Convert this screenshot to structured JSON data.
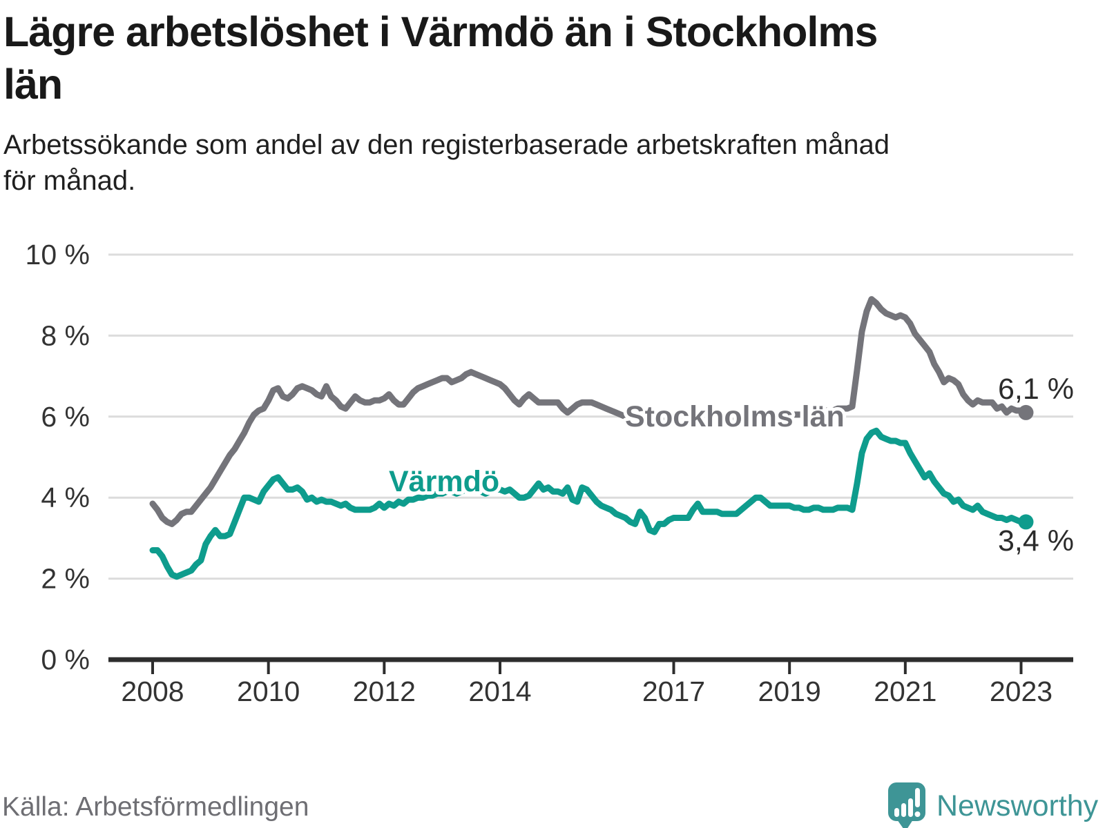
{
  "header": {
    "title_line1": "Lägre arbetslöshet i Värmdö än i Stockholms",
    "title_line2": "län",
    "subtitle_line1": "Arbetssökande som andel av den registerbaserade arbetskraften månad",
    "subtitle_line2": "för månad."
  },
  "footer": {
    "source": "Källa: Arbetsförmedlingen",
    "logo_text": "Newsworthy"
  },
  "chart_data": {
    "type": "line",
    "title": "Lägre arbetslöshet i Värmdö än i Stockholms län",
    "subtitle": "Arbetssökande som andel av den registerbaserade arbetskraften månad för månad.",
    "unit": "percent of registered labour force",
    "x_start": "2008-01",
    "x_end": "2023-02",
    "x_interval": "month",
    "ylim": [
      0,
      10
    ],
    "grid": true,
    "legend_position": "inline-labels",
    "y_axis": {
      "ticks": [
        {
          "label": "0 %",
          "value": 0
        },
        {
          "label": "2 %",
          "value": 2
        },
        {
          "label": "4 %",
          "value": 4
        },
        {
          "label": "6 %",
          "value": 6
        },
        {
          "label": "8 %",
          "value": 8
        },
        {
          "label": "10 %",
          "value": 10
        }
      ]
    },
    "x_axis": {
      "ticks": [
        {
          "label": "2008",
          "month": 0
        },
        {
          "label": "2010",
          "month": 24
        },
        {
          "label": "2012",
          "month": 48
        },
        {
          "label": "2014",
          "month": 72
        },
        {
          "label": "2017",
          "month": 108
        },
        {
          "label": "2019",
          "month": 132
        },
        {
          "label": "2021",
          "month": 156
        },
        {
          "label": "2023",
          "month": 180
        }
      ]
    },
    "style": {
      "grid_color": "#DCDCDC",
      "axis_color": "#2D2D2D",
      "tick_label_color": "#333333",
      "value_label_color": "#2B2B2B",
      "halo_color": "#FFFFFF"
    },
    "series": [
      {
        "id": "stockholm",
        "name": "Stockholms län",
        "color": "#74747A",
        "end_value": 6.1,
        "end_label": "6,1 %",
        "values": [
          3.85,
          3.7,
          3.5,
          3.4,
          3.35,
          3.45,
          3.6,
          3.65,
          3.65,
          3.8,
          3.95,
          4.1,
          4.25,
          4.45,
          4.65,
          4.85,
          5.05,
          5.2,
          5.4,
          5.6,
          5.85,
          6.05,
          6.15,
          6.2,
          6.4,
          6.65,
          6.7,
          6.5,
          6.45,
          6.55,
          6.7,
          6.75,
          6.7,
          6.65,
          6.55,
          6.5,
          6.75,
          6.5,
          6.4,
          6.25,
          6.2,
          6.35,
          6.5,
          6.4,
          6.35,
          6.35,
          6.4,
          6.4,
          6.45,
          6.55,
          6.4,
          6.3,
          6.3,
          6.45,
          6.6,
          6.7,
          6.75,
          6.8,
          6.85,
          6.9,
          6.95,
          6.95,
          6.85,
          6.9,
          6.95,
          7.05,
          7.1,
          7.05,
          7.0,
          6.95,
          6.9,
          6.85,
          6.8,
          6.7,
          6.55,
          6.4,
          6.3,
          6.45,
          6.55,
          6.45,
          6.35,
          6.35,
          6.35,
          6.35,
          6.35,
          6.2,
          6.1,
          6.2,
          6.3,
          6.35,
          6.35,
          6.35,
          6.3,
          6.25,
          6.2,
          6.15,
          6.1,
          6.05,
          6.0,
          5.95,
          5.95,
          5.95,
          6.0,
          6.0,
          5.95,
          5.9,
          5.9,
          5.9,
          5.9,
          5.9,
          5.85,
          5.85,
          5.85,
          5.9,
          5.95,
          5.95,
          5.9,
          5.85,
          5.85,
          5.9,
          5.9,
          5.9,
          5.85,
          5.85,
          5.85,
          5.9,
          5.95,
          5.95,
          5.95,
          5.95,
          6.0,
          6.05,
          6.05,
          6.05,
          6.05,
          6.05,
          6.1,
          6.1,
          6.15,
          6.15,
          6.15,
          6.15,
          6.2,
          6.2,
          6.2,
          6.25,
          7.15,
          8.1,
          8.6,
          8.9,
          8.8,
          8.65,
          8.55,
          8.5,
          8.45,
          8.5,
          8.45,
          8.3,
          8.05,
          7.9,
          7.75,
          7.6,
          7.3,
          7.1,
          6.85,
          6.95,
          6.9,
          6.8,
          6.55,
          6.4,
          6.3,
          6.4,
          6.35,
          6.35,
          6.35,
          6.2,
          6.25,
          6.1,
          6.2,
          6.15,
          6.15,
          6.1
        ]
      },
      {
        "id": "varmdo",
        "name": "Värmdö",
        "color": "#0E9C8D",
        "end_value": 3.4,
        "end_label": "3,4 %",
        "values": [
          2.7,
          2.7,
          2.55,
          2.3,
          2.1,
          2.05,
          2.1,
          2.15,
          2.2,
          2.35,
          2.45,
          2.85,
          3.05,
          3.2,
          3.05,
          3.05,
          3.1,
          3.4,
          3.7,
          4.0,
          4.0,
          3.95,
          3.9,
          4.15,
          4.3,
          4.45,
          4.5,
          4.35,
          4.2,
          4.2,
          4.25,
          4.15,
          3.95,
          4.0,
          3.9,
          3.95,
          3.9,
          3.9,
          3.85,
          3.8,
          3.85,
          3.75,
          3.7,
          3.7,
          3.7,
          3.7,
          3.75,
          3.85,
          3.75,
          3.85,
          3.8,
          3.9,
          3.85,
          3.95,
          3.95,
          4.0,
          4.0,
          4.05,
          4.05,
          4.1,
          4.1,
          4.15,
          4.15,
          4.1,
          4.15,
          4.2,
          4.2,
          4.15,
          4.15,
          4.1,
          4.15,
          4.2,
          4.2,
          4.15,
          4.2,
          4.1,
          4.0,
          4.0,
          4.05,
          4.2,
          4.35,
          4.2,
          4.25,
          4.15,
          4.15,
          4.1,
          4.25,
          3.95,
          3.9,
          4.25,
          4.2,
          4.05,
          3.9,
          3.8,
          3.75,
          3.7,
          3.6,
          3.55,
          3.5,
          3.4,
          3.35,
          3.65,
          3.5,
          3.2,
          3.15,
          3.35,
          3.35,
          3.45,
          3.5,
          3.5,
          3.5,
          3.5,
          3.7,
          3.85,
          3.65,
          3.65,
          3.65,
          3.65,
          3.6,
          3.6,
          3.6,
          3.6,
          3.7,
          3.8,
          3.9,
          4.0,
          4.0,
          3.9,
          3.8,
          3.8,
          3.8,
          3.8,
          3.8,
          3.75,
          3.75,
          3.7,
          3.7,
          3.75,
          3.75,
          3.7,
          3.7,
          3.7,
          3.75,
          3.75,
          3.75,
          3.7,
          4.35,
          5.1,
          5.45,
          5.6,
          5.65,
          5.5,
          5.45,
          5.4,
          5.4,
          5.35,
          5.35,
          5.1,
          4.9,
          4.7,
          4.5,
          4.6,
          4.4,
          4.25,
          4.1,
          4.05,
          3.9,
          3.95,
          3.8,
          3.75,
          3.7,
          3.8,
          3.65,
          3.6,
          3.55,
          3.5,
          3.5,
          3.45,
          3.5,
          3.45,
          3.4,
          3.4
        ]
      }
    ]
  }
}
